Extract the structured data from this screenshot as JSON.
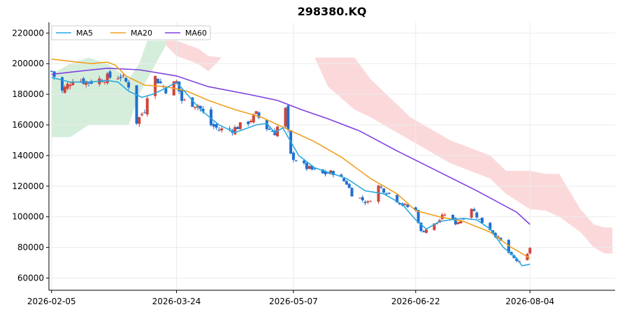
{
  "chart_data": {
    "type": "candlestick",
    "title": "298380.KQ",
    "xlabel": "",
    "ylabel": "",
    "ylim": [
      52000,
      227000
    ],
    "x_range": [
      "2026-02-04",
      "2026-09-05"
    ],
    "x_ticks": [
      "2026-02-05",
      "2026-03-24",
      "2026-05-07",
      "2026-06-22",
      "2026-08-04"
    ],
    "y_ticks": [
      60000,
      80000,
      100000,
      120000,
      140000,
      160000,
      180000,
      200000,
      220000
    ],
    "grid": true,
    "legend_position": "top-left",
    "colors": {
      "up": "#d0453a",
      "down": "#1f6fcf",
      "ma5": "#29a8e0",
      "ma20": "#f0a020",
      "ma60": "#8040e0",
      "cloud_bull": "#d5eedb",
      "cloud_bear": "#fbd9db",
      "grid": "#ebebeb"
    },
    "series": [
      {
        "name": "MA5",
        "key": "ma5"
      },
      {
        "name": "MA20",
        "key": "ma20"
      },
      {
        "name": "MA60",
        "key": "ma60"
      }
    ],
    "candles_anchors": [
      [
        "2026-02-05",
        195000
      ],
      [
        "2026-02-09",
        182000
      ],
      [
        "2026-02-13",
        190000
      ],
      [
        "2026-02-19",
        188000
      ],
      [
        "2026-02-26",
        191000
      ],
      [
        "2026-03-03",
        192000
      ],
      [
        "2026-03-06",
        186000
      ],
      [
        "2026-03-09",
        162000
      ],
      [
        "2026-03-12",
        170000
      ],
      [
        "2026-03-13",
        180000
      ],
      [
        "2026-03-16",
        191000
      ],
      [
        "2026-03-20",
        183000
      ],
      [
        "2026-03-24",
        188000
      ],
      [
        "2026-03-26",
        176000
      ],
      [
        "2026-04-01",
        173000
      ],
      [
        "2026-04-06",
        160000
      ],
      [
        "2026-04-09",
        157000
      ],
      [
        "2026-04-14",
        157000
      ],
      [
        "2026-04-20",
        162000
      ],
      [
        "2026-04-23",
        167000
      ],
      [
        "2026-04-27",
        158000
      ],
      [
        "2026-04-30",
        155000
      ],
      [
        "2026-05-04",
        170000
      ],
      [
        "2026-05-06",
        140000
      ],
      [
        "2026-05-12",
        132000
      ],
      [
        "2026-05-18",
        128000
      ],
      [
        "2026-05-22",
        129000
      ],
      [
        "2026-05-27",
        122000
      ],
      [
        "2026-05-29",
        115000
      ],
      [
        "2026-06-04",
        109000
      ],
      [
        "2026-06-08",
        120000
      ],
      [
        "2026-06-12",
        115000
      ],
      [
        "2026-06-17",
        108000
      ],
      [
        "2026-06-22",
        104000
      ],
      [
        "2026-06-24",
        90000
      ],
      [
        "2026-06-26",
        92000
      ],
      [
        "2026-06-30",
        96000
      ],
      [
        "2026-07-03",
        102000
      ],
      [
        "2026-07-07",
        96000
      ],
      [
        "2026-07-09",
        98000
      ],
      [
        "2026-07-13",
        106000
      ],
      [
        "2026-07-16",
        98000
      ],
      [
        "2026-07-20",
        92000
      ],
      [
        "2026-07-24",
        84000
      ],
      [
        "2026-07-28",
        74000
      ],
      [
        "2026-07-31",
        70000
      ],
      [
        "2026-08-01",
        65000
      ],
      [
        "2026-08-02",
        70000
      ],
      [
        "2026-08-04",
        80000
      ]
    ],
    "ma5": [
      [
        "2026-02-05",
        191000
      ],
      [
        "2026-02-12",
        188000
      ],
      [
        "2026-02-19",
        188000
      ],
      [
        "2026-02-26",
        189000
      ],
      [
        "2026-03-02",
        188000
      ],
      [
        "2026-03-06",
        182000
      ],
      [
        "2026-03-11",
        178000
      ],
      [
        "2026-03-15",
        180000
      ],
      [
        "2026-03-20",
        184000
      ],
      [
        "2026-03-24",
        188000
      ],
      [
        "2026-03-28",
        180000
      ],
      [
        "2026-04-02",
        170000
      ],
      [
        "2026-04-09",
        160000
      ],
      [
        "2026-04-15",
        155000
      ],
      [
        "2026-04-23",
        160000
      ],
      [
        "2026-04-27",
        161000
      ],
      [
        "2026-04-30",
        155000
      ],
      [
        "2026-05-03",
        158000
      ],
      [
        "2026-05-09",
        140000
      ],
      [
        "2026-05-15",
        132000
      ],
      [
        "2026-05-22",
        128000
      ],
      [
        "2026-05-27",
        125000
      ],
      [
        "2026-06-03",
        117000
      ],
      [
        "2026-06-10",
        115000
      ],
      [
        "2026-06-17",
        108000
      ],
      [
        "2026-06-22",
        98000
      ],
      [
        "2026-06-26",
        92000
      ],
      [
        "2026-07-01",
        97000
      ],
      [
        "2026-07-05",
        98000
      ],
      [
        "2026-07-10",
        99000
      ],
      [
        "2026-07-15",
        98000
      ],
      [
        "2026-07-20",
        92000
      ],
      [
        "2026-07-25",
        80000
      ],
      [
        "2026-07-30",
        73000
      ],
      [
        "2026-08-01",
        68000
      ],
      [
        "2026-08-04",
        69000
      ]
    ],
    "ma20": [
      [
        "2026-02-05",
        203000
      ],
      [
        "2026-02-10",
        202000
      ],
      [
        "2026-02-20",
        200000
      ],
      [
        "2026-02-26",
        201000
      ],
      [
        "2026-03-01",
        199000
      ],
      [
        "2026-03-05",
        192000
      ],
      [
        "2026-03-12",
        186000
      ],
      [
        "2026-03-20",
        185000
      ],
      [
        "2026-03-28",
        182000
      ],
      [
        "2026-04-05",
        176000
      ],
      [
        "2026-04-15",
        170000
      ],
      [
        "2026-04-25",
        165000
      ],
      [
        "2026-05-05",
        157000
      ],
      [
        "2026-05-15",
        149000
      ],
      [
        "2026-05-25",
        139000
      ],
      [
        "2026-06-05",
        125000
      ],
      [
        "2026-06-15",
        115000
      ],
      [
        "2026-06-22",
        104000
      ],
      [
        "2026-07-01",
        100000
      ],
      [
        "2026-07-10",
        97000
      ],
      [
        "2026-07-20",
        90000
      ],
      [
        "2026-07-28",
        80000
      ],
      [
        "2026-08-04",
        73000
      ]
    ],
    "ma60": [
      [
        "2026-02-05",
        193000
      ],
      [
        "2026-02-15",
        195000
      ],
      [
        "2026-02-26",
        197000
      ],
      [
        "2026-03-10",
        196000
      ],
      [
        "2026-03-24",
        192000
      ],
      [
        "2026-04-05",
        185000
      ],
      [
        "2026-04-20",
        180000
      ],
      [
        "2026-05-01",
        176000
      ],
      [
        "2026-05-10",
        170000
      ],
      [
        "2026-05-20",
        164000
      ],
      [
        "2026-06-01",
        156000
      ],
      [
        "2026-06-15",
        143000
      ],
      [
        "2026-06-30",
        130000
      ],
      [
        "2026-07-15",
        117000
      ],
      [
        "2026-07-30",
        103000
      ],
      [
        "2026-08-04",
        95000
      ]
    ],
    "cloud": [
      [
        "2026-02-05",
        152000,
        193000
      ],
      [
        "2026-02-12",
        152000,
        200000
      ],
      [
        "2026-02-19",
        160000,
        204000
      ],
      [
        "2026-02-26",
        160000,
        200000
      ],
      [
        "2026-03-06",
        160000,
        190000
      ],
      [
        "2026-03-10",
        180000,
        200000
      ],
      [
        "2026-03-13",
        190000,
        215000
      ],
      [
        "2026-03-20",
        212000,
        215000
      ],
      [
        "2026-03-24",
        205000,
        215000
      ],
      [
        "2026-04-01",
        200000,
        210000
      ],
      [
        "2026-04-05",
        195000,
        205000
      ],
      [
        "2026-04-10",
        204000,
        204000
      ],
      [
        "2026-05-15",
        204000,
        204000
      ],
      [
        "2026-05-20",
        185000,
        204000
      ],
      [
        "2026-05-30",
        170000,
        204000
      ],
      [
        "2026-06-05",
        165000,
        190000
      ],
      [
        "2026-06-20",
        150000,
        165000
      ],
      [
        "2026-07-05",
        135000,
        150000
      ],
      [
        "2026-07-20",
        125000,
        140000
      ],
      [
        "2026-07-26",
        115000,
        130000
      ],
      [
        "2026-08-04",
        105000,
        130000
      ],
      [
        "2026-08-10",
        104000,
        128000
      ],
      [
        "2026-08-15",
        100000,
        128000
      ],
      [
        "2026-08-23",
        90000,
        105000
      ],
      [
        "2026-08-28",
        80000,
        95000
      ],
      [
        "2026-09-01",
        76000,
        93000
      ],
      [
        "2026-09-04",
        76000,
        93000
      ]
    ]
  }
}
